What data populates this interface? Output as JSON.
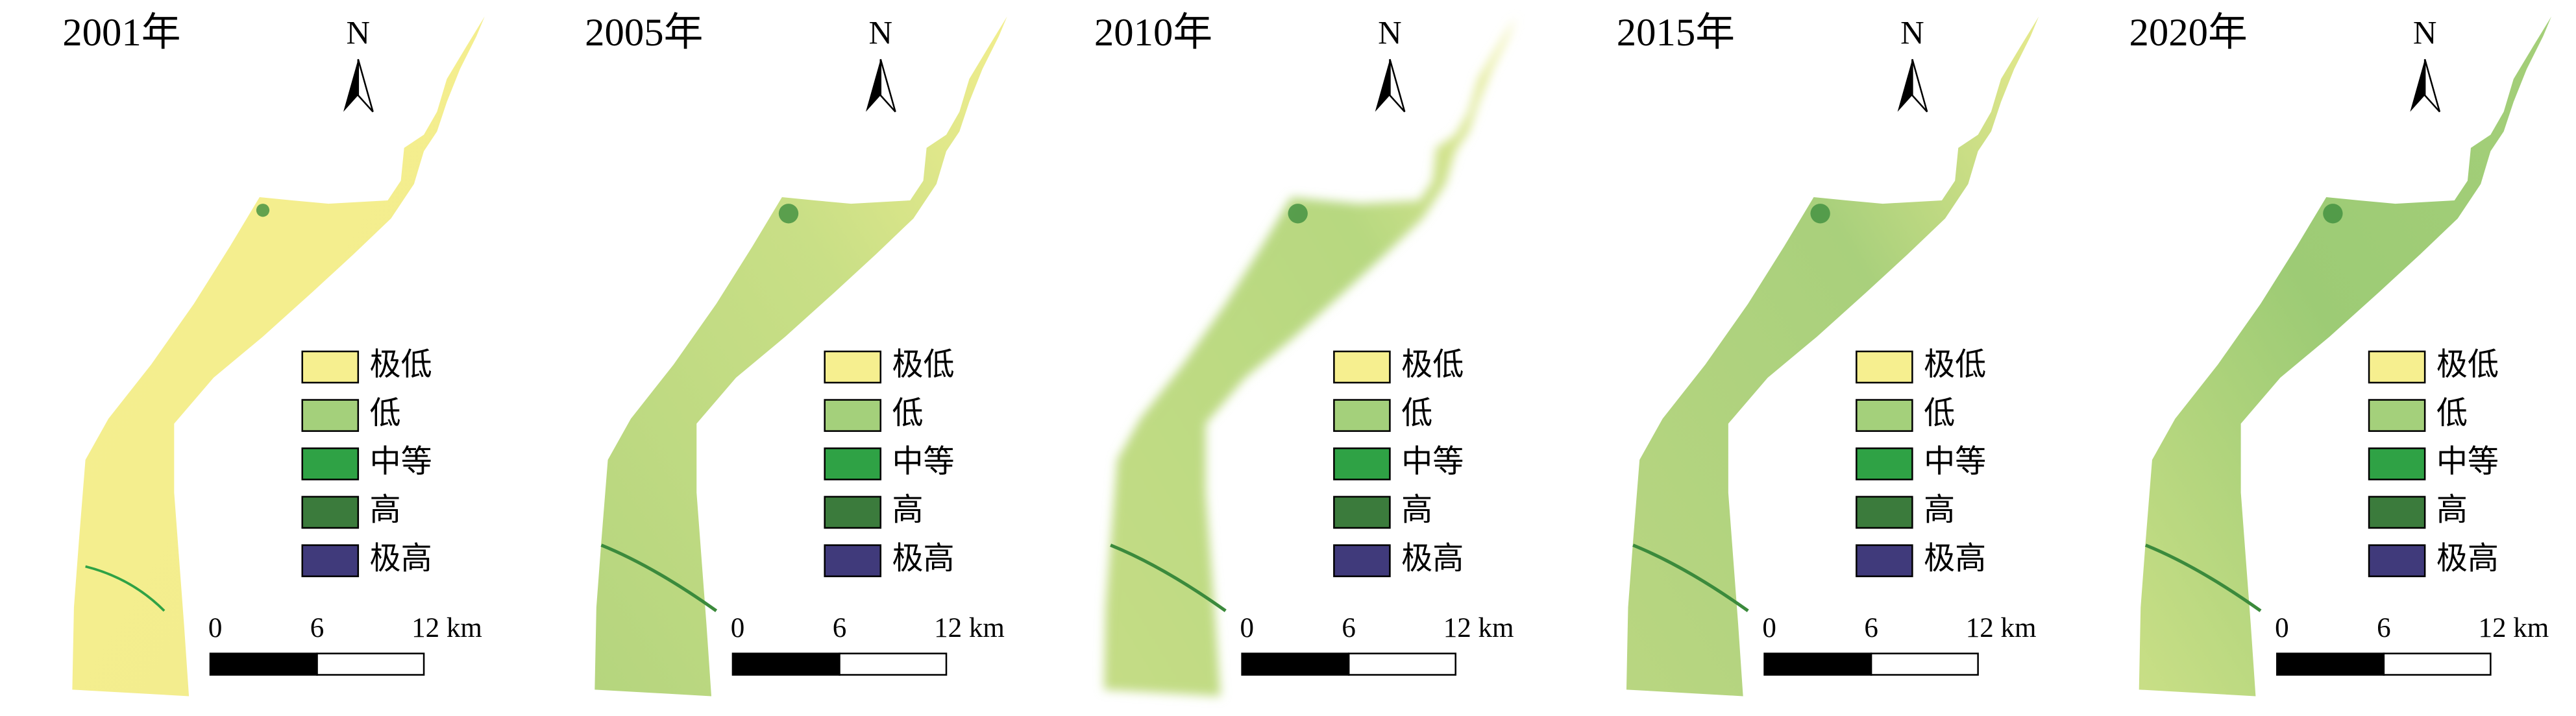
{
  "panels": [
    {
      "title": "2001年",
      "north": "N",
      "legend": [
        {
          "label": "极低",
          "color": "#f6ef8f"
        },
        {
          "label": "低",
          "color": "#a4d07b"
        },
        {
          "label": "中等",
          "color": "#2fa245"
        },
        {
          "label": "高",
          "color": "#3b7b3c"
        },
        {
          "label": "极高",
          "color": "#403a7b"
        }
      ],
      "scale": [
        "0",
        "6",
        "12 km"
      ]
    },
    {
      "title": "2005年",
      "north": "N",
      "legend": [
        {
          "label": "极低",
          "color": "#f6ef8f"
        },
        {
          "label": "低",
          "color": "#a4d07b"
        },
        {
          "label": "中等",
          "color": "#2fa245"
        },
        {
          "label": "高",
          "color": "#3b7b3c"
        },
        {
          "label": "极高",
          "color": "#403a7b"
        }
      ],
      "scale": [
        "0",
        "6",
        "12 km"
      ]
    },
    {
      "title": "2010年",
      "north": "N",
      "legend": [
        {
          "label": "极低",
          "color": "#f6ef8f"
        },
        {
          "label": "低",
          "color": "#a4d07b"
        },
        {
          "label": "中等",
          "color": "#2fa245"
        },
        {
          "label": "高",
          "color": "#3b7b3c"
        },
        {
          "label": "极高",
          "color": "#403a7b"
        }
      ],
      "scale": [
        "0",
        "6",
        "12 km"
      ]
    },
    {
      "title": "2015年",
      "north": "N",
      "legend": [
        {
          "label": "极低",
          "color": "#f6ef8f"
        },
        {
          "label": "低",
          "color": "#a4d07b"
        },
        {
          "label": "中等",
          "color": "#2fa245"
        },
        {
          "label": "高",
          "color": "#3b7b3c"
        },
        {
          "label": "极高",
          "color": "#403a7b"
        }
      ],
      "scale": [
        "0",
        "6",
        "12 km"
      ]
    },
    {
      "title": "2020年",
      "north": "N",
      "legend": [
        {
          "label": "极低",
          "color": "#f6ef8f"
        },
        {
          "label": "低",
          "color": "#a4d07b"
        },
        {
          "label": "中等",
          "color": "#2fa245"
        },
        {
          "label": "高",
          "color": "#3b7b3c"
        },
        {
          "label": "极高",
          "color": "#403a7b"
        }
      ],
      "scale": [
        "0",
        "6",
        "12 km"
      ]
    }
  ]
}
